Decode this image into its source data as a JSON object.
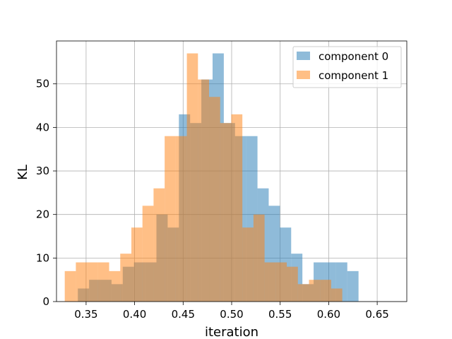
{
  "chart_data": {
    "type": "bar",
    "title": "",
    "xlabel": "iteration",
    "ylabel": "KL",
    "xlim": [
      0.3195,
      0.6805
    ],
    "ylim": [
      0,
      59.85
    ],
    "xticks": [
      "0.35",
      "0.40",
      "0.45",
      "0.50",
      "0.55",
      "0.60",
      "0.65"
    ],
    "xtick_values": [
      0.35,
      0.4,
      0.45,
      0.5,
      0.55,
      0.6,
      0.65
    ],
    "yticks": [
      "0",
      "10",
      "20",
      "30",
      "40",
      "50"
    ],
    "ytick_values": [
      0,
      10,
      20,
      30,
      40,
      50
    ],
    "grid": true,
    "legend_position": "top-right",
    "series": [
      {
        "name": "component 0",
        "color": "#1f77b4",
        "opacity": 0.5,
        "bin_start": 0.3415,
        "bin_width": 0.01157,
        "values": [
          3,
          5,
          5,
          4,
          8,
          9,
          9,
          20,
          17,
          43,
          41,
          51,
          57,
          41,
          38,
          38,
          26,
          22,
          17,
          11,
          4,
          9,
          9,
          9,
          7
        ]
      },
      {
        "name": "component 1",
        "color": "#ff7f0e",
        "opacity": 0.5,
        "bin_start": 0.328,
        "bin_width": 0.01144,
        "values": [
          7,
          9,
          9,
          9,
          7,
          11,
          17,
          22,
          26,
          38,
          38,
          57,
          51,
          47,
          41,
          43,
          17,
          20,
          9,
          9,
          8,
          4,
          5,
          5,
          3
        ]
      }
    ]
  }
}
